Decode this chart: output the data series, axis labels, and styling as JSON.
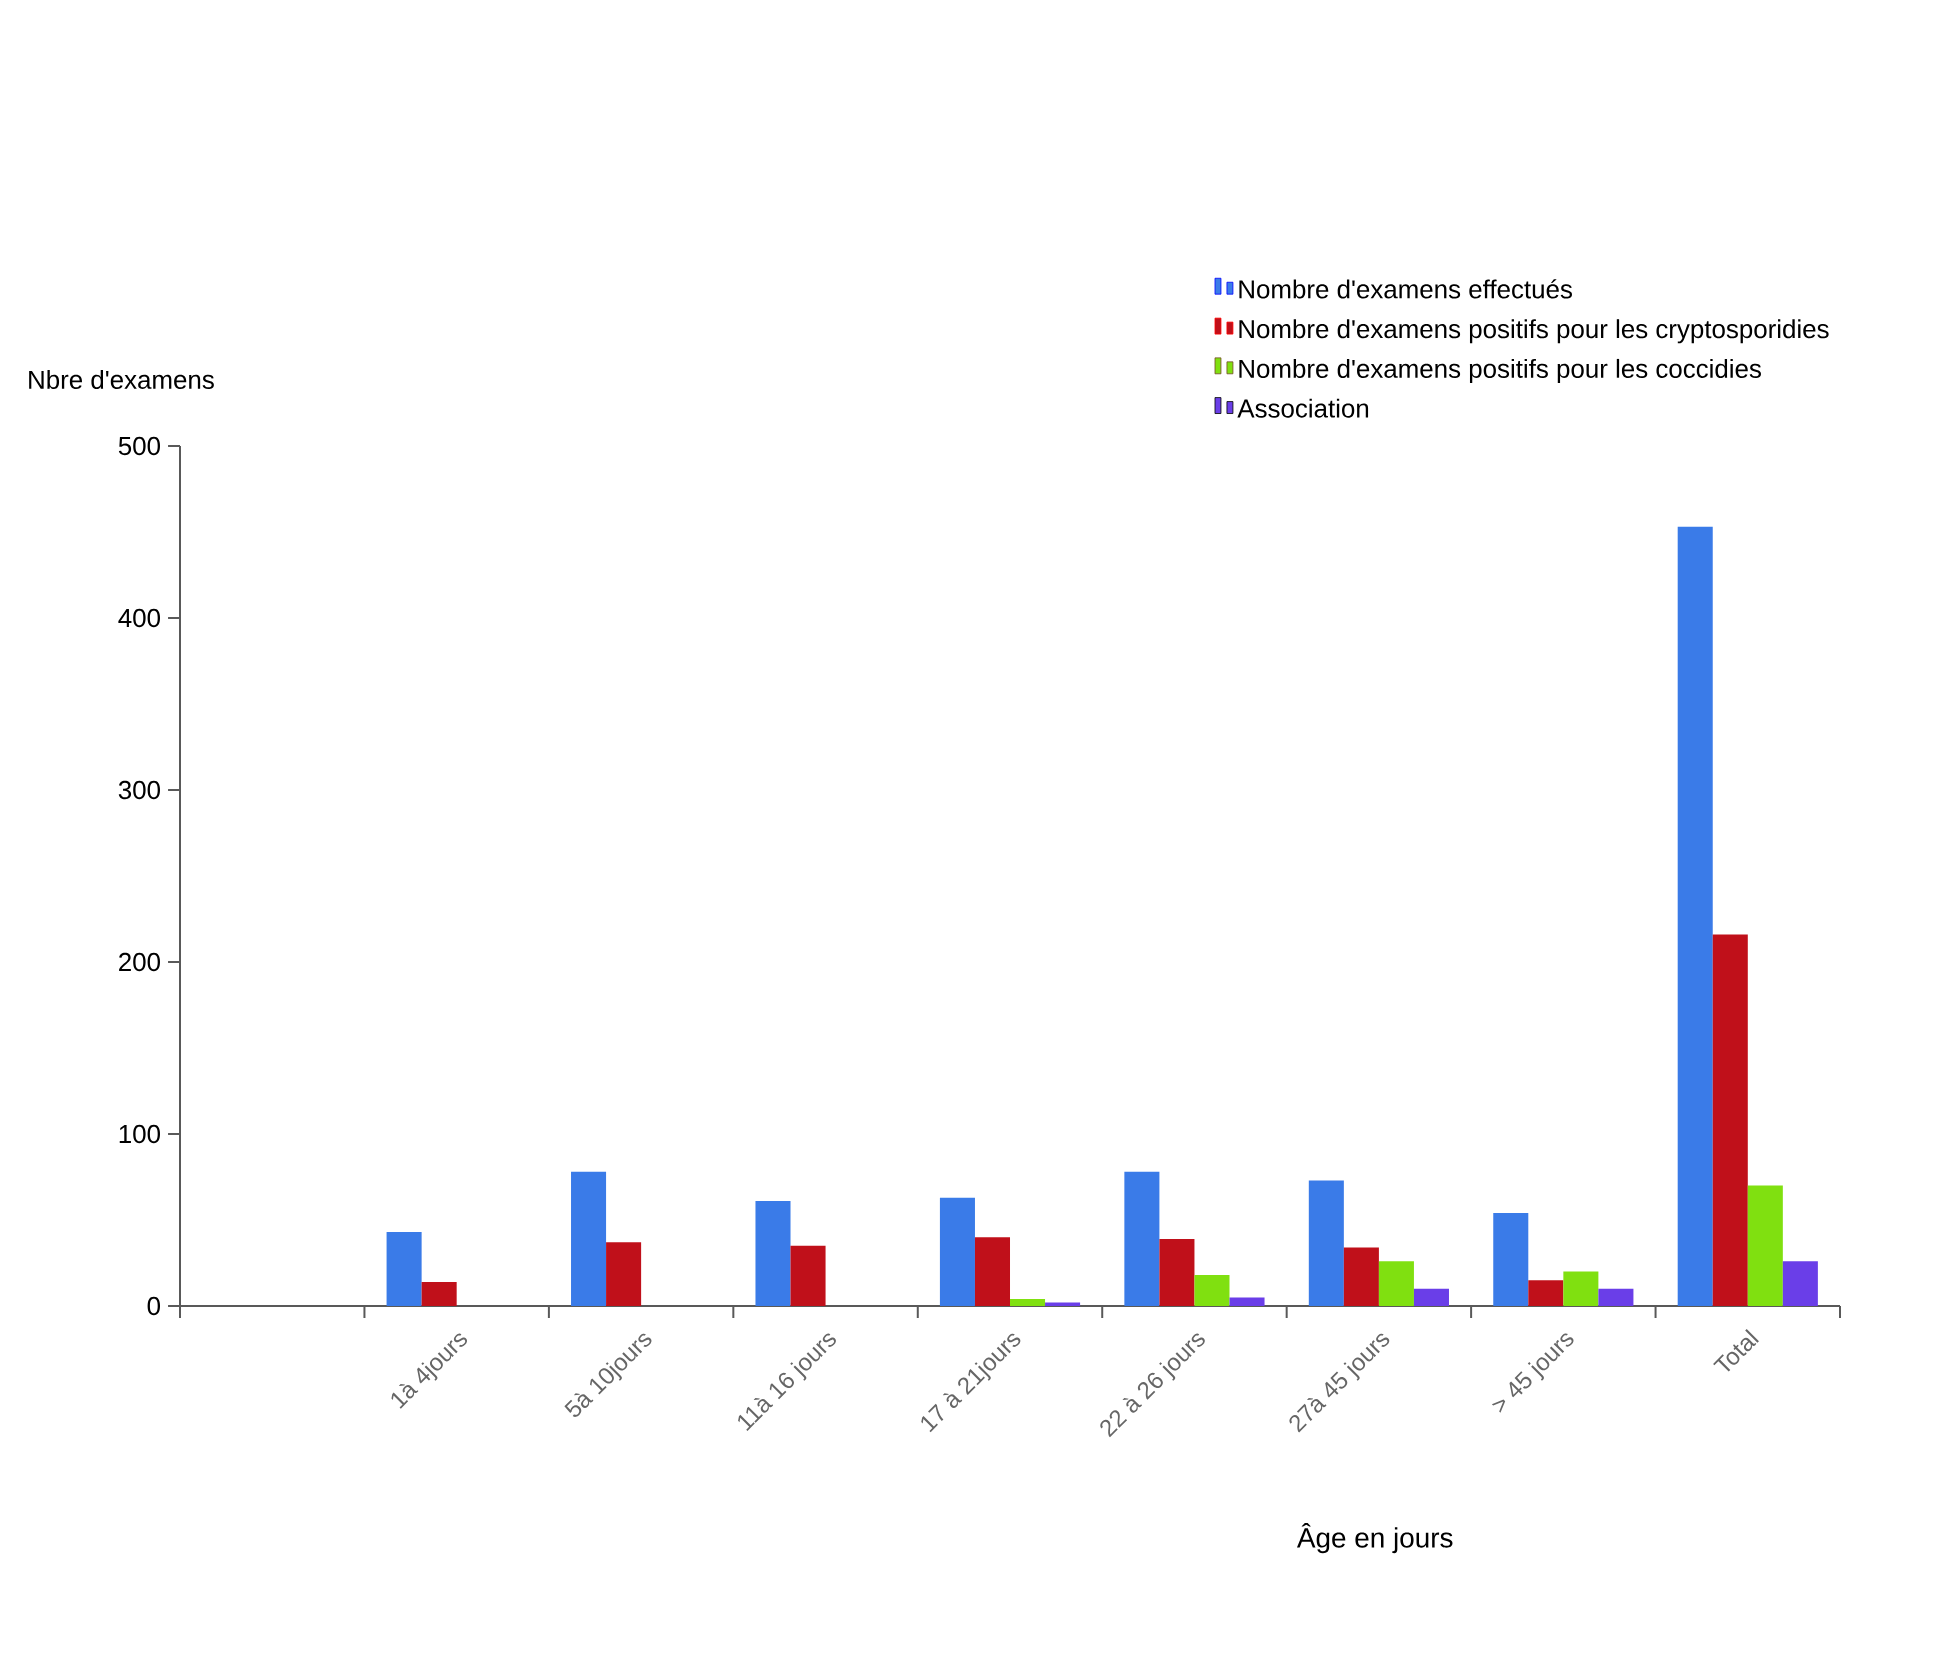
{
  "chart_data": {
    "type": "bar",
    "xlabel": "Âge en jours",
    "ylabel": "Nbre d'examens",
    "categories": [
      null,
      "1à 4jours",
      "5à 10jours",
      "11à 16 jours",
      "17 à 21jours",
      "22 à 26 jours",
      "27à 45 jours",
      "> 45 jours",
      "Total"
    ],
    "series": [
      {
        "name": "Nombre d'examens effectués",
        "color": "#3a7be8",
        "values": [
          null,
          43,
          78,
          61,
          63,
          78,
          73,
          54,
          453
        ]
      },
      {
        "name": "Nombre d'examens positifs pour les cryptosporidies",
        "color": "#c0101a",
        "values": [
          null,
          14,
          37,
          35,
          40,
          39,
          34,
          15,
          216
        ]
      },
      {
        "name": "Nombre d'examens positifs pour les coccidies",
        "color": "#80e010",
        "values": [
          null,
          0,
          0,
          0,
          4,
          18,
          26,
          20,
          70
        ]
      },
      {
        "name": "Association",
        "color": "#6a3ee8",
        "values": [
          null,
          0,
          0,
          0,
          2,
          5,
          10,
          10,
          26
        ]
      }
    ],
    "ylim": [
      0,
      500
    ],
    "yticks": [
      0,
      100,
      200,
      300,
      400,
      500
    ],
    "legend": "top right"
  }
}
